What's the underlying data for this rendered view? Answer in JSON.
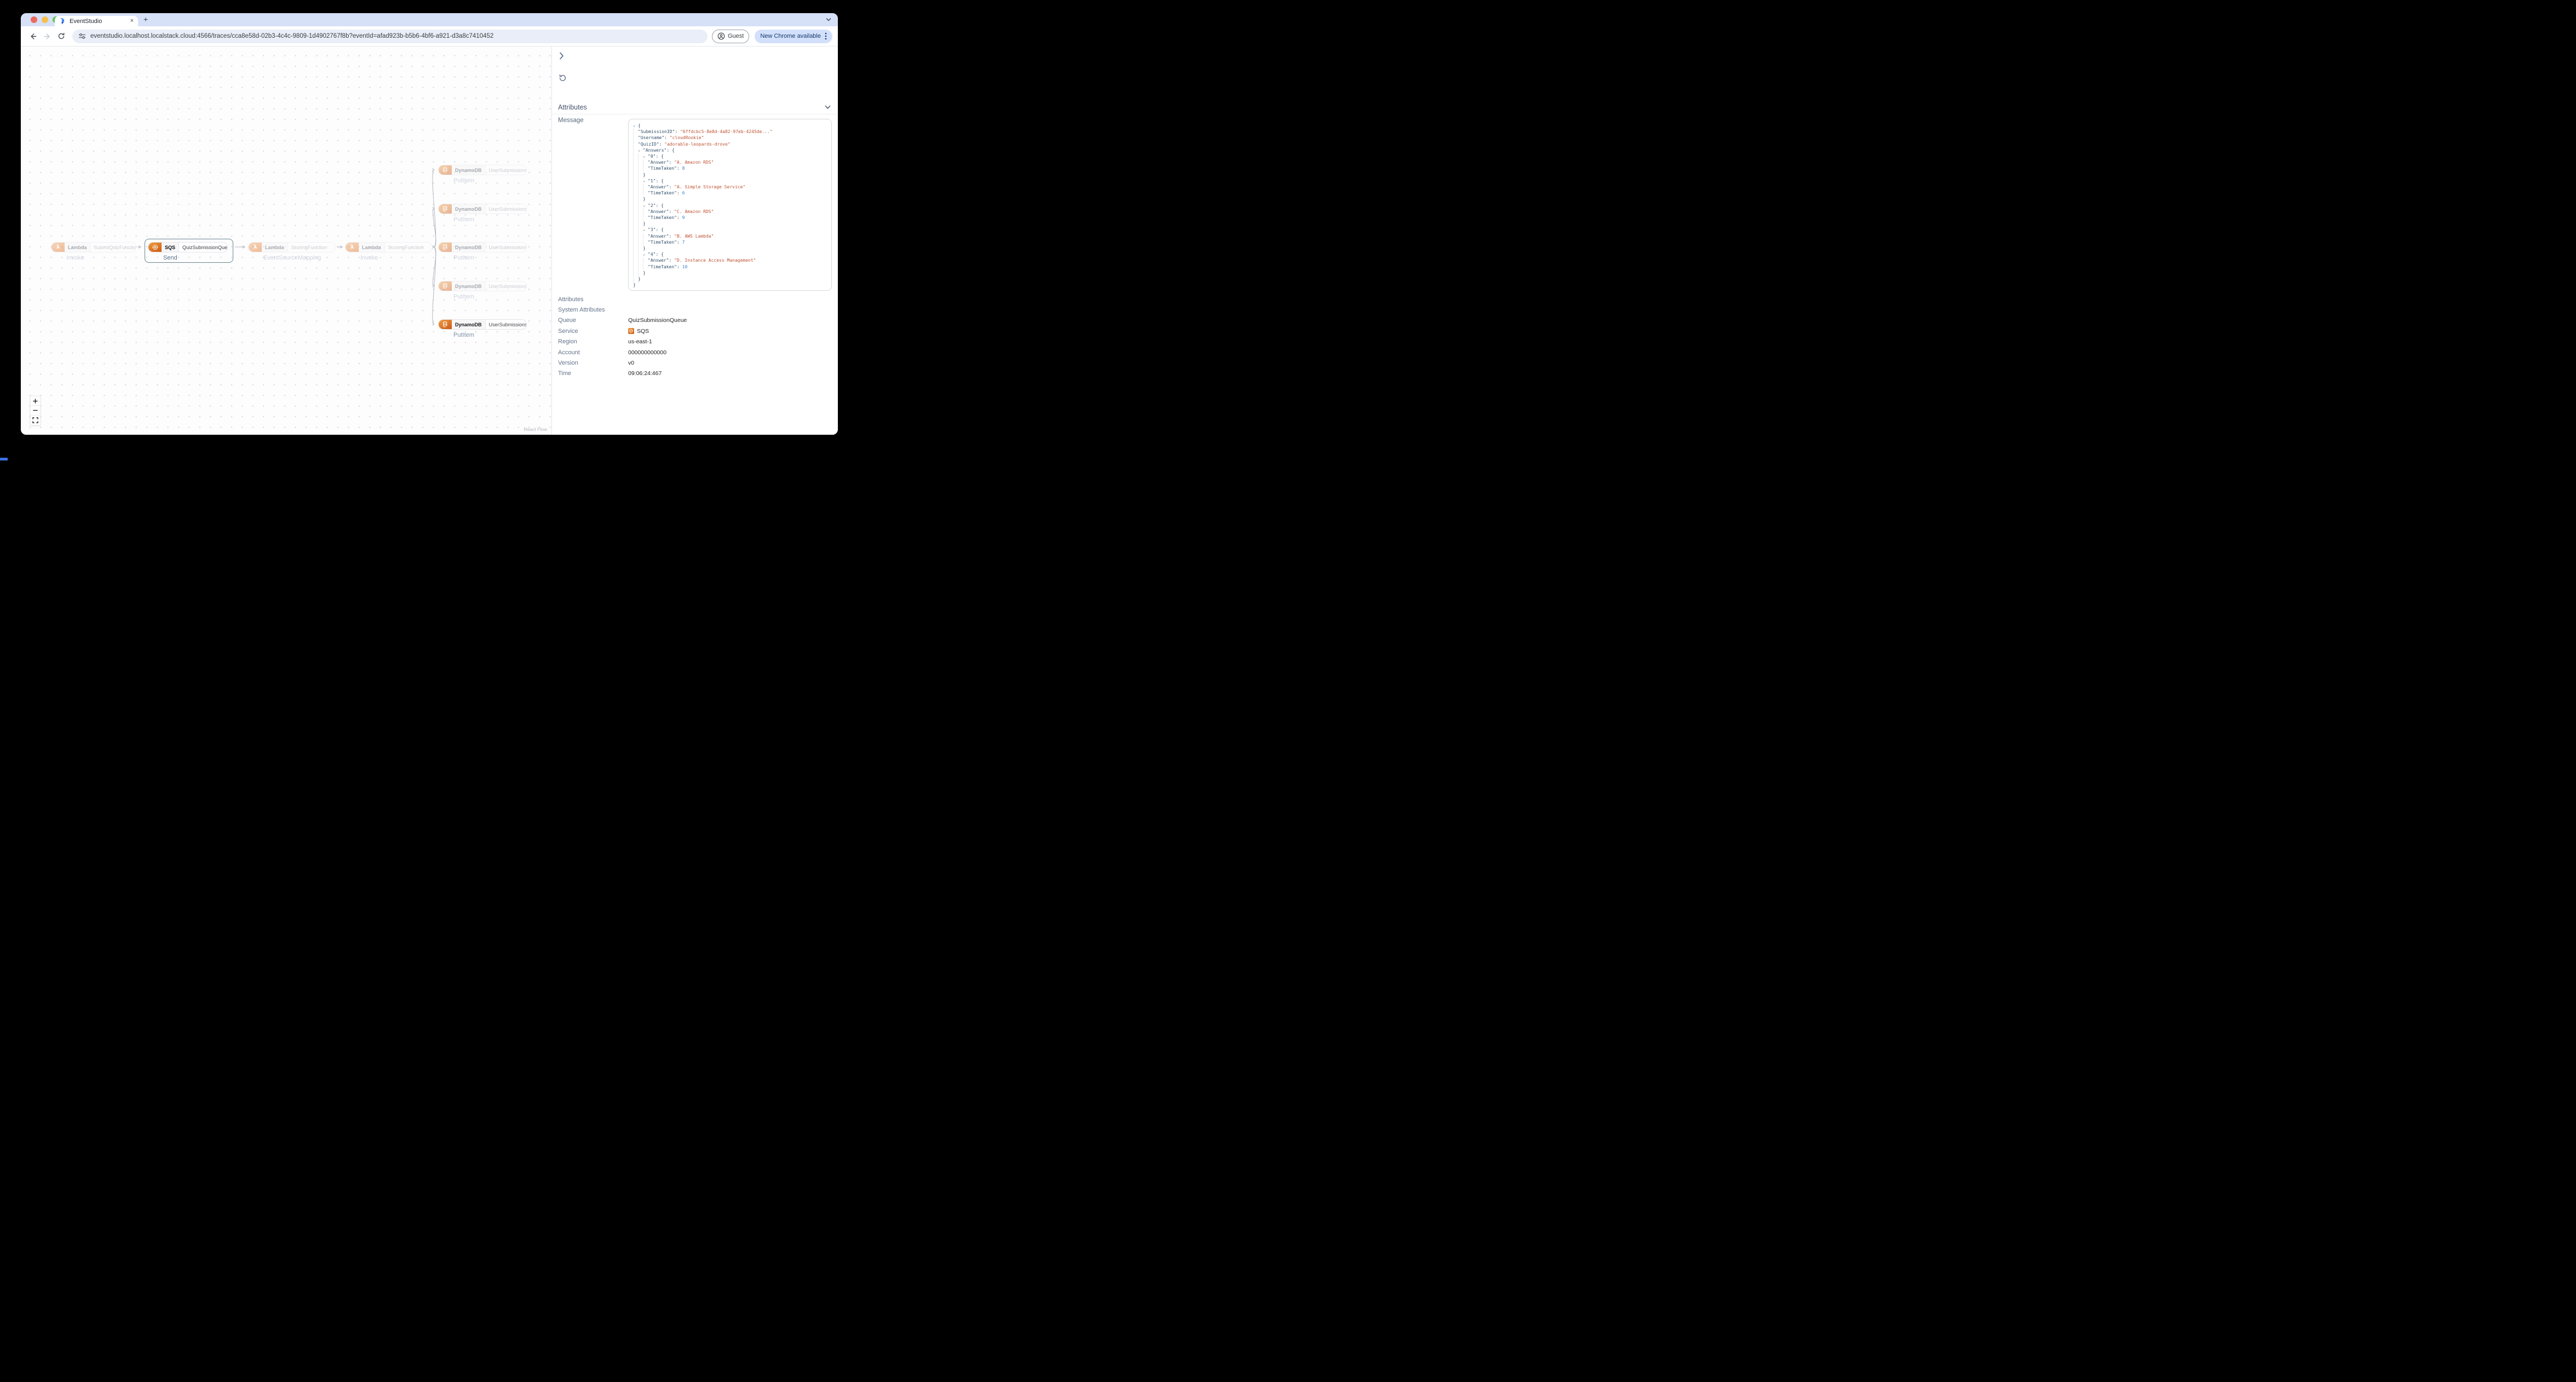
{
  "browser": {
    "tab_title": "EventStudio",
    "tab_close": "×",
    "new_tab": "+",
    "url": "eventstudio.localhost.localstack.cloud:4566/traces/cca8e58d-02b3-4c4c-9809-1d4902767f8b?eventId=afad923b-b5b6-4bf6-a921-d3a8c7410452",
    "guest_label": "Guest",
    "update_label": "New Chrome available"
  },
  "flow": {
    "attribution": "React Flow",
    "nodes": [
      {
        "id": "lambda-submit",
        "type": "lambda",
        "service": "Lambda",
        "name": "SubmitQuizFunction",
        "action": "Invoke",
        "state": "faded"
      },
      {
        "id": "sqs-queue",
        "type": "sqs",
        "service": "SQS",
        "name": "QuizSubmissionQueue",
        "action": "Send",
        "state": "selected"
      },
      {
        "id": "lambda-scoring-esm",
        "type": "lambda",
        "service": "Lambda",
        "name": "ScoringFunction",
        "action": "EventSourceMapping",
        "state": "faded"
      },
      {
        "id": "lambda-scoring-invoke",
        "type": "lambda",
        "service": "Lambda",
        "name": "ScoringFunction",
        "action": "Invoke",
        "state": "faded"
      },
      {
        "id": "ddb-1",
        "type": "dynamodb",
        "service": "DynamoDB",
        "name": "UserSubmissions",
        "action": "PutItem",
        "state": "faded"
      },
      {
        "id": "ddb-2",
        "type": "dynamodb",
        "service": "DynamoDB",
        "name": "UserSubmissions",
        "action": "PutItem",
        "state": "faded"
      },
      {
        "id": "ddb-3",
        "type": "dynamodb",
        "service": "DynamoDB",
        "name": "UserSubmissions",
        "action": "PutItem",
        "state": "faded"
      },
      {
        "id": "ddb-4",
        "type": "dynamodb",
        "service": "DynamoDB",
        "name": "UserSubmissions",
        "action": "PutItem",
        "state": "faded"
      },
      {
        "id": "ddb-5",
        "type": "dynamodb",
        "service": "DynamoDB",
        "name": "UserSubmissions",
        "action": "PutItem",
        "state": "normal"
      }
    ]
  },
  "panel": {
    "header": "Attributes",
    "message_label": "Message",
    "message": {
      "lines": [
        {
          "ch": 1,
          "ind": 0,
          "t": [
            [
              "p",
              "{"
            ]
          ]
        },
        {
          "ind": 1,
          "t": [
            [
              "k",
              "\"SubmissionID\""
            ],
            [
              "p",
              ": "
            ],
            [
              "s",
              "\"6ffdcbc5-8e8d-4a82-97eb-4245de...\""
            ]
          ]
        },
        {
          "ind": 1,
          "t": [
            [
              "k",
              "\"Username\""
            ],
            [
              "p",
              ": "
            ],
            [
              "s",
              "\"cloudRookie\""
            ]
          ]
        },
        {
          "ind": 1,
          "t": [
            [
              "k",
              "\"QuizID\""
            ],
            [
              "p",
              ": "
            ],
            [
              "s",
              "\"adorable-leopards-drove\""
            ]
          ]
        },
        {
          "ch": 1,
          "ind": 1,
          "t": [
            [
              "k",
              "\"Answers\""
            ],
            [
              "p",
              ": "
            ],
            [
              "p",
              "{"
            ]
          ]
        },
        {
          "ch": 1,
          "ind": 2,
          "t": [
            [
              "k",
              "\"0\""
            ],
            [
              "p",
              ": "
            ],
            [
              "p",
              "{"
            ]
          ]
        },
        {
          "ind": 3,
          "t": [
            [
              "k",
              "\"Answer\""
            ],
            [
              "p",
              ": "
            ],
            [
              "s",
              "\"A. Amazon RDS\""
            ]
          ]
        },
        {
          "ind": 3,
          "t": [
            [
              "k",
              "\"TimeTaken\""
            ],
            [
              "p",
              ": "
            ],
            [
              "n",
              "8"
            ]
          ]
        },
        {
          "ind": 2,
          "t": [
            [
              "p",
              "}"
            ]
          ]
        },
        {
          "ch": 1,
          "ind": 2,
          "t": [
            [
              "k",
              "\"1\""
            ],
            [
              "p",
              ": "
            ],
            [
              "p",
              "{"
            ]
          ]
        },
        {
          "ind": 3,
          "t": [
            [
              "k",
              "\"Answer\""
            ],
            [
              "p",
              ": "
            ],
            [
              "s",
              "\"A. Simple Storage Service\""
            ]
          ]
        },
        {
          "ind": 3,
          "t": [
            [
              "k",
              "\"TimeTaken\""
            ],
            [
              "p",
              ": "
            ],
            [
              "n",
              "6"
            ]
          ]
        },
        {
          "ind": 2,
          "t": [
            [
              "p",
              "}"
            ]
          ]
        },
        {
          "ch": 1,
          "ind": 2,
          "t": [
            [
              "k",
              "\"2\""
            ],
            [
              "p",
              ": "
            ],
            [
              "p",
              "{"
            ]
          ]
        },
        {
          "ind": 3,
          "t": [
            [
              "k",
              "\"Answer\""
            ],
            [
              "p",
              ": "
            ],
            [
              "s",
              "\"C. Amazon RDS\""
            ]
          ]
        },
        {
          "ind": 3,
          "t": [
            [
              "k",
              "\"TimeTaken\""
            ],
            [
              "p",
              ": "
            ],
            [
              "n",
              "9"
            ]
          ]
        },
        {
          "ind": 2,
          "t": [
            [
              "p",
              "}"
            ]
          ]
        },
        {
          "ch": 1,
          "ind": 2,
          "t": [
            [
              "k",
              "\"3\""
            ],
            [
              "p",
              ": "
            ],
            [
              "p",
              "{"
            ]
          ]
        },
        {
          "ind": 3,
          "t": [
            [
              "k",
              "\"Answer\""
            ],
            [
              "p",
              ": "
            ],
            [
              "s",
              "\"B. AWS Lambda\""
            ]
          ]
        },
        {
          "ind": 3,
          "t": [
            [
              "k",
              "\"TimeTaken\""
            ],
            [
              "p",
              ": "
            ],
            [
              "n",
              "7"
            ]
          ]
        },
        {
          "ind": 2,
          "t": [
            [
              "p",
              "}"
            ]
          ]
        },
        {
          "ch": 1,
          "ind": 2,
          "t": [
            [
              "k",
              "\"4\""
            ],
            [
              "p",
              ": "
            ],
            [
              "p",
              "{"
            ]
          ]
        },
        {
          "ind": 3,
          "t": [
            [
              "k",
              "\"Answer\""
            ],
            [
              "p",
              ": "
            ],
            [
              "s",
              "\"D. Instance Access Management\""
            ]
          ]
        },
        {
          "ind": 3,
          "t": [
            [
              "k",
              "\"TimeTaken\""
            ],
            [
              "p",
              ": "
            ],
            [
              "n",
              "10"
            ]
          ]
        },
        {
          "ind": 2,
          "t": [
            [
              "p",
              "}"
            ]
          ]
        },
        {
          "ind": 1,
          "t": [
            [
              "p",
              "}"
            ]
          ]
        },
        {
          "ind": 0,
          "t": [
            [
              "p",
              "}"
            ]
          ]
        }
      ]
    },
    "attributes": [
      {
        "label": "Attributes",
        "value": "",
        "section": true
      },
      {
        "label": "System Attributes",
        "value": "",
        "section": true
      },
      {
        "label": "Queue",
        "value": "QuizSubmissionQueue"
      },
      {
        "label": "Service",
        "value": "SQS",
        "icon": "sqs"
      },
      {
        "label": "Region",
        "value": "us-east-1"
      },
      {
        "label": "Account",
        "value": "000000000000"
      },
      {
        "label": "Version",
        "value": "v0"
      },
      {
        "label": "Time",
        "value": "09:06:24:467"
      }
    ]
  }
}
